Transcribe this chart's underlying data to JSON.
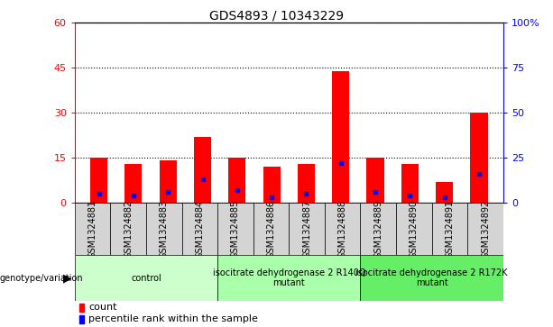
{
  "title": "GDS4893 / 10343229",
  "samples": [
    "GSM1324881",
    "GSM1324882",
    "GSM1324883",
    "GSM1324884",
    "GSM1324885",
    "GSM1324886",
    "GSM1324887",
    "GSM1324888",
    "GSM1324889",
    "GSM1324890",
    "GSM1324891",
    "GSM1324892"
  ],
  "counts": [
    15,
    13,
    14,
    22,
    15,
    12,
    13,
    44,
    15,
    13,
    7,
    30
  ],
  "percentile_rank": [
    5,
    4,
    6,
    13,
    7,
    3,
    5,
    22,
    6,
    4,
    3,
    16
  ],
  "bar_color": "#ff0000",
  "marker_color": "#0000ff",
  "ylim_left": [
    0,
    60
  ],
  "ylim_right": [
    0,
    100
  ],
  "yticks_left": [
    0,
    15,
    30,
    45,
    60
  ],
  "yticks_right": [
    0,
    25,
    50,
    75,
    100
  ],
  "ytick_labels_right": [
    "0",
    "25",
    "50",
    "75",
    "100%"
  ],
  "groups": [
    {
      "label": "control",
      "start": 0,
      "end": 3,
      "color": "#ccffcc"
    },
    {
      "label": "isocitrate dehydrogenase 2 R140Q\nmutant",
      "start": 4,
      "end": 7,
      "color": "#aaffaa"
    },
    {
      "label": "isocitrate dehydrogenase 2 R172K\nmutant",
      "start": 8,
      "end": 11,
      "color": "#66ee66"
    }
  ],
  "legend_items": [
    {
      "label": "count",
      "color": "#ff0000"
    },
    {
      "label": "percentile rank within the sample",
      "color": "#0000ff"
    }
  ],
  "genotype_label": "genotype/variation",
  "left_axis_color": "#ff0000",
  "right_axis_color": "#0000ff",
  "bar_width": 0.5,
  "tick_label_fontsize": 7,
  "title_fontsize": 10,
  "group_label_fontsize": 7,
  "legend_fontsize": 8,
  "sample_cell_color": "#d4d4d4",
  "grid_color": "#000000"
}
